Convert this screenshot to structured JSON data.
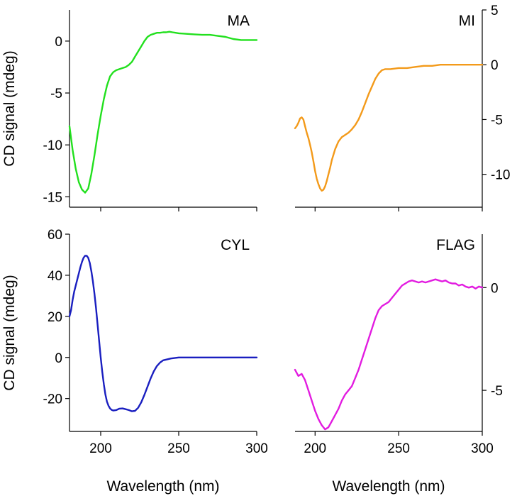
{
  "chart_data": [
    {
      "type": "line",
      "panel": "top-left",
      "label": "MA",
      "color": "#22e01e",
      "xlim": [
        180,
        300
      ],
      "ylim": [
        -16,
        3
      ],
      "yticks": [
        0,
        -5,
        -10,
        -15
      ],
      "ytick_labels": [
        "0",
        "-5",
        "-10",
        "-15"
      ],
      "yaxis_side": "left",
      "ylabel": "CD signal (mdeg)",
      "xlabel": "",
      "x": [
        180,
        182,
        184,
        186,
        188,
        190,
        192,
        194,
        196,
        198,
        200,
        202,
        204,
        206,
        208,
        210,
        212,
        214,
        216,
        218,
        220,
        222,
        224,
        226,
        228,
        230,
        232,
        234,
        236,
        238,
        240,
        242,
        244,
        246,
        248,
        250,
        255,
        260,
        265,
        270,
        275,
        280,
        285,
        290,
        295,
        300
      ],
      "y": [
        -8.2,
        -10.5,
        -12.3,
        -13.6,
        -14.3,
        -14.6,
        -14.2,
        -12.8,
        -11.0,
        -9.0,
        -7.2,
        -5.6,
        -4.3,
        -3.4,
        -3.0,
        -2.8,
        -2.7,
        -2.6,
        -2.5,
        -2.3,
        -2.0,
        -1.5,
        -1.0,
        -0.5,
        0.0,
        0.4,
        0.6,
        0.7,
        0.8,
        0.8,
        0.85,
        0.85,
        0.9,
        0.85,
        0.8,
        0.75,
        0.7,
        0.65,
        0.6,
        0.6,
        0.5,
        0.4,
        0.2,
        0.1,
        0.1,
        0.1
      ]
    },
    {
      "type": "line",
      "panel": "top-right",
      "label": "MI",
      "color": "#f39a1a",
      "xlim": [
        188,
        300
      ],
      "ylim": [
        -13,
        5
      ],
      "yticks": [
        5,
        0,
        -5,
        -10
      ],
      "ytick_labels": [
        "5",
        "0",
        "-5",
        "-10"
      ],
      "yaxis_side": "right",
      "ylabel": "",
      "xlabel": "",
      "x": [
        188,
        189,
        190,
        191,
        192,
        193,
        194,
        195,
        196,
        197,
        198,
        199,
        200,
        201,
        202,
        203,
        204,
        205,
        206,
        207,
        208,
        209,
        210,
        212,
        214,
        216,
        218,
        220,
        222,
        224,
        226,
        228,
        230,
        232,
        234,
        236,
        238,
        240,
        242,
        245,
        250,
        255,
        260,
        265,
        270,
        275,
        280,
        285,
        290,
        295,
        300
      ],
      "y": [
        -5.8,
        -5.6,
        -5.3,
        -4.9,
        -4.8,
        -5.0,
        -5.6,
        -6.2,
        -6.7,
        -7.3,
        -8.0,
        -8.8,
        -9.7,
        -10.4,
        -10.9,
        -11.3,
        -11.5,
        -11.4,
        -11.1,
        -10.6,
        -10.0,
        -9.4,
        -8.7,
        -7.7,
        -7.0,
        -6.6,
        -6.4,
        -6.2,
        -5.9,
        -5.5,
        -5.0,
        -4.3,
        -3.5,
        -2.7,
        -2.0,
        -1.3,
        -0.8,
        -0.5,
        -0.4,
        -0.4,
        -0.3,
        -0.3,
        -0.2,
        -0.1,
        -0.1,
        0.0,
        0.0,
        0.0,
        0.0,
        0.0,
        0.0
      ]
    },
    {
      "type": "line",
      "panel": "bottom-left",
      "label": "CYL",
      "color": "#1a1fc0",
      "xlim": [
        180,
        300
      ],
      "ylim": [
        -36,
        60
      ],
      "yticks": [
        60,
        40,
        20,
        0,
        -20
      ],
      "ytick_labels": [
        "60",
        "40",
        "20",
        "0",
        "-20"
      ],
      "xticks": [
        200,
        250,
        300
      ],
      "xtick_labels": [
        "200",
        "250",
        "300"
      ],
      "yaxis_side": "left",
      "ylabel": "CD signal (mdeg)",
      "xlabel": "Wavelength (nm)",
      "x": [
        180,
        181,
        182,
        183,
        184,
        185,
        186,
        187,
        188,
        189,
        190,
        191,
        192,
        193,
        194,
        195,
        196,
        197,
        198,
        199,
        200,
        201,
        202,
        203,
        204,
        205,
        206,
        207,
        208,
        210,
        212,
        214,
        216,
        218,
        220,
        222,
        224,
        226,
        228,
        230,
        232,
        234,
        236,
        238,
        240,
        245,
        250,
        255,
        260,
        265,
        270,
        275,
        280,
        285,
        290,
        295,
        300
      ],
      "y": [
        20,
        23,
        28,
        32,
        35,
        38,
        41,
        44,
        46.5,
        48.5,
        49.5,
        49.5,
        48.5,
        46,
        42,
        37,
        31,
        24,
        16,
        8,
        0,
        -7,
        -13,
        -18,
        -21.5,
        -23.5,
        -24.8,
        -25.5,
        -25.8,
        -25.6,
        -24.9,
        -24.8,
        -25.2,
        -25.6,
        -26.2,
        -26.0,
        -24.5,
        -21.8,
        -18.2,
        -14.2,
        -10.2,
        -6.8,
        -4.2,
        -2.5,
        -1.4,
        -0.5,
        0.0,
        0.0,
        0.0,
        0.0,
        0.0,
        0.0,
        0.0,
        0.0,
        0.0,
        0.0,
        0.0
      ]
    },
    {
      "type": "line",
      "panel": "bottom-right",
      "label": "FLAG",
      "color": "#e21ce0",
      "xlim": [
        188,
        300
      ],
      "ylim": [
        -7,
        2.6
      ],
      "yticks": [
        0,
        -5
      ],
      "ytick_labels": [
        "0",
        "-5"
      ],
      "xticks": [
        200,
        250,
        300
      ],
      "xtick_labels": [
        "200",
        "250",
        "300"
      ],
      "yaxis_side": "right",
      "ylabel": "",
      "xlabel": "Wavelength (nm)",
      "x": [
        188,
        190,
        192,
        194,
        196,
        198,
        200,
        202,
        204,
        206,
        208,
        210,
        212,
        214,
        216,
        218,
        220,
        222,
        224,
        226,
        228,
        230,
        232,
        234,
        236,
        238,
        240,
        242,
        244,
        246,
        248,
        250,
        252,
        254,
        256,
        258,
        260,
        262,
        264,
        266,
        268,
        270,
        272,
        274,
        276,
        278,
        280,
        282,
        284,
        286,
        288,
        290,
        292,
        294,
        296,
        298,
        300
      ],
      "y": [
        -4.0,
        -4.3,
        -4.2,
        -4.5,
        -5.0,
        -5.5,
        -6.0,
        -6.4,
        -6.7,
        -6.9,
        -6.8,
        -6.5,
        -6.2,
        -5.9,
        -5.5,
        -5.2,
        -5.0,
        -4.8,
        -4.4,
        -4.0,
        -3.5,
        -3.0,
        -2.5,
        -2.0,
        -1.5,
        -1.1,
        -0.9,
        -0.8,
        -0.7,
        -0.5,
        -0.3,
        -0.1,
        0.1,
        0.2,
        0.3,
        0.35,
        0.3,
        0.25,
        0.3,
        0.25,
        0.3,
        0.35,
        0.4,
        0.35,
        0.3,
        0.35,
        0.25,
        0.2,
        0.2,
        0.1,
        0.15,
        0.05,
        0.0,
        0.05,
        -0.05,
        0.05,
        0.0
      ]
    }
  ]
}
